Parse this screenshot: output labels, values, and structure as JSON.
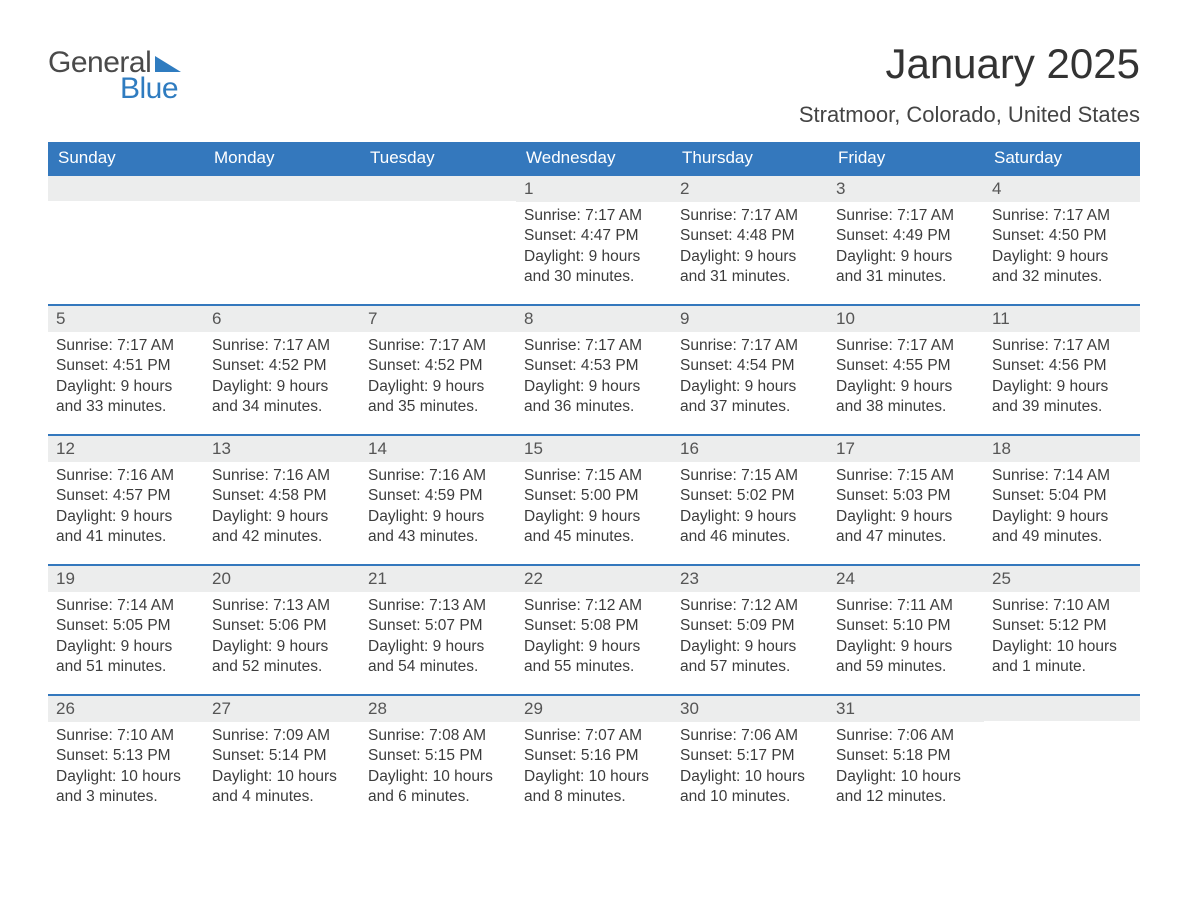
{
  "logo": {
    "text1": "General",
    "text2": "Blue",
    "flag_color": "#2f7cc0",
    "text1_color": "#4a4a4a"
  },
  "title": "January 2025",
  "location": "Stratmoor, Colorado, United States",
  "colors": {
    "header_bg": "#3478bd",
    "header_text": "#ffffff",
    "daynum_bg": "#eceded",
    "week_border": "#3478bd",
    "body_text": "#3c3c3c",
    "background": "#ffffff"
  },
  "fonts": {
    "title_size": 42,
    "location_size": 22,
    "dow_size": 17,
    "daynum_size": 17,
    "body_size": 15.5
  },
  "days_of_week": [
    "Sunday",
    "Monday",
    "Tuesday",
    "Wednesday",
    "Thursday",
    "Friday",
    "Saturday"
  ],
  "weeks": [
    [
      null,
      null,
      null,
      {
        "n": "1",
        "sunrise": "Sunrise: 7:17 AM",
        "sunset": "Sunset: 4:47 PM",
        "d1": "Daylight: 9 hours",
        "d2": "and 30 minutes."
      },
      {
        "n": "2",
        "sunrise": "Sunrise: 7:17 AM",
        "sunset": "Sunset: 4:48 PM",
        "d1": "Daylight: 9 hours",
        "d2": "and 31 minutes."
      },
      {
        "n": "3",
        "sunrise": "Sunrise: 7:17 AM",
        "sunset": "Sunset: 4:49 PM",
        "d1": "Daylight: 9 hours",
        "d2": "and 31 minutes."
      },
      {
        "n": "4",
        "sunrise": "Sunrise: 7:17 AM",
        "sunset": "Sunset: 4:50 PM",
        "d1": "Daylight: 9 hours",
        "d2": "and 32 minutes."
      }
    ],
    [
      {
        "n": "5",
        "sunrise": "Sunrise: 7:17 AM",
        "sunset": "Sunset: 4:51 PM",
        "d1": "Daylight: 9 hours",
        "d2": "and 33 minutes."
      },
      {
        "n": "6",
        "sunrise": "Sunrise: 7:17 AM",
        "sunset": "Sunset: 4:52 PM",
        "d1": "Daylight: 9 hours",
        "d2": "and 34 minutes."
      },
      {
        "n": "7",
        "sunrise": "Sunrise: 7:17 AM",
        "sunset": "Sunset: 4:52 PM",
        "d1": "Daylight: 9 hours",
        "d2": "and 35 minutes."
      },
      {
        "n": "8",
        "sunrise": "Sunrise: 7:17 AM",
        "sunset": "Sunset: 4:53 PM",
        "d1": "Daylight: 9 hours",
        "d2": "and 36 minutes."
      },
      {
        "n": "9",
        "sunrise": "Sunrise: 7:17 AM",
        "sunset": "Sunset: 4:54 PM",
        "d1": "Daylight: 9 hours",
        "d2": "and 37 minutes."
      },
      {
        "n": "10",
        "sunrise": "Sunrise: 7:17 AM",
        "sunset": "Sunset: 4:55 PM",
        "d1": "Daylight: 9 hours",
        "d2": "and 38 minutes."
      },
      {
        "n": "11",
        "sunrise": "Sunrise: 7:17 AM",
        "sunset": "Sunset: 4:56 PM",
        "d1": "Daylight: 9 hours",
        "d2": "and 39 minutes."
      }
    ],
    [
      {
        "n": "12",
        "sunrise": "Sunrise: 7:16 AM",
        "sunset": "Sunset: 4:57 PM",
        "d1": "Daylight: 9 hours",
        "d2": "and 41 minutes."
      },
      {
        "n": "13",
        "sunrise": "Sunrise: 7:16 AM",
        "sunset": "Sunset: 4:58 PM",
        "d1": "Daylight: 9 hours",
        "d2": "and 42 minutes."
      },
      {
        "n": "14",
        "sunrise": "Sunrise: 7:16 AM",
        "sunset": "Sunset: 4:59 PM",
        "d1": "Daylight: 9 hours",
        "d2": "and 43 minutes."
      },
      {
        "n": "15",
        "sunrise": "Sunrise: 7:15 AM",
        "sunset": "Sunset: 5:00 PM",
        "d1": "Daylight: 9 hours",
        "d2": "and 45 minutes."
      },
      {
        "n": "16",
        "sunrise": "Sunrise: 7:15 AM",
        "sunset": "Sunset: 5:02 PM",
        "d1": "Daylight: 9 hours",
        "d2": "and 46 minutes."
      },
      {
        "n": "17",
        "sunrise": "Sunrise: 7:15 AM",
        "sunset": "Sunset: 5:03 PM",
        "d1": "Daylight: 9 hours",
        "d2": "and 47 minutes."
      },
      {
        "n": "18",
        "sunrise": "Sunrise: 7:14 AM",
        "sunset": "Sunset: 5:04 PM",
        "d1": "Daylight: 9 hours",
        "d2": "and 49 minutes."
      }
    ],
    [
      {
        "n": "19",
        "sunrise": "Sunrise: 7:14 AM",
        "sunset": "Sunset: 5:05 PM",
        "d1": "Daylight: 9 hours",
        "d2": "and 51 minutes."
      },
      {
        "n": "20",
        "sunrise": "Sunrise: 7:13 AM",
        "sunset": "Sunset: 5:06 PM",
        "d1": "Daylight: 9 hours",
        "d2": "and 52 minutes."
      },
      {
        "n": "21",
        "sunrise": "Sunrise: 7:13 AM",
        "sunset": "Sunset: 5:07 PM",
        "d1": "Daylight: 9 hours",
        "d2": "and 54 minutes."
      },
      {
        "n": "22",
        "sunrise": "Sunrise: 7:12 AM",
        "sunset": "Sunset: 5:08 PM",
        "d1": "Daylight: 9 hours",
        "d2": "and 55 minutes."
      },
      {
        "n": "23",
        "sunrise": "Sunrise: 7:12 AM",
        "sunset": "Sunset: 5:09 PM",
        "d1": "Daylight: 9 hours",
        "d2": "and 57 minutes."
      },
      {
        "n": "24",
        "sunrise": "Sunrise: 7:11 AM",
        "sunset": "Sunset: 5:10 PM",
        "d1": "Daylight: 9 hours",
        "d2": "and 59 minutes."
      },
      {
        "n": "25",
        "sunrise": "Sunrise: 7:10 AM",
        "sunset": "Sunset: 5:12 PM",
        "d1": "Daylight: 10 hours",
        "d2": "and 1 minute."
      }
    ],
    [
      {
        "n": "26",
        "sunrise": "Sunrise: 7:10 AM",
        "sunset": "Sunset: 5:13 PM",
        "d1": "Daylight: 10 hours",
        "d2": "and 3 minutes."
      },
      {
        "n": "27",
        "sunrise": "Sunrise: 7:09 AM",
        "sunset": "Sunset: 5:14 PM",
        "d1": "Daylight: 10 hours",
        "d2": "and 4 minutes."
      },
      {
        "n": "28",
        "sunrise": "Sunrise: 7:08 AM",
        "sunset": "Sunset: 5:15 PM",
        "d1": "Daylight: 10 hours",
        "d2": "and 6 minutes."
      },
      {
        "n": "29",
        "sunrise": "Sunrise: 7:07 AM",
        "sunset": "Sunset: 5:16 PM",
        "d1": "Daylight: 10 hours",
        "d2": "and 8 minutes."
      },
      {
        "n": "30",
        "sunrise": "Sunrise: 7:06 AM",
        "sunset": "Sunset: 5:17 PM",
        "d1": "Daylight: 10 hours",
        "d2": "and 10 minutes."
      },
      {
        "n": "31",
        "sunrise": "Sunrise: 7:06 AM",
        "sunset": "Sunset: 5:18 PM",
        "d1": "Daylight: 10 hours",
        "d2": "and 12 minutes."
      },
      null
    ]
  ]
}
